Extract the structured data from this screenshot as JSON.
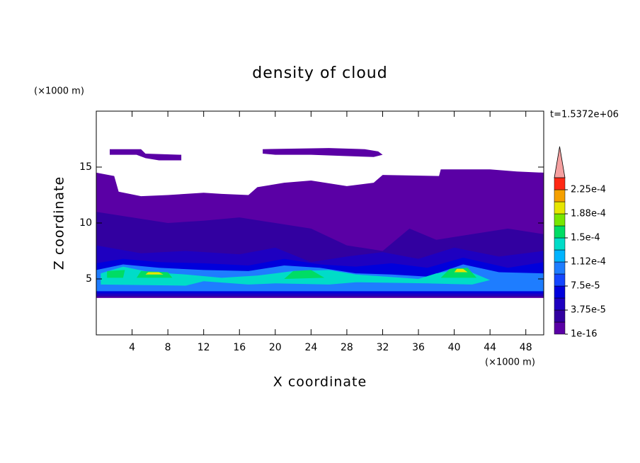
{
  "chart_data": {
    "type": "contour",
    "title": "density of cloud",
    "x_label": "X coordinate",
    "y_label": "Z coordinate",
    "x_unit": "(×1000 m)",
    "y_unit": "(×1000 m)",
    "annotation": "t=1.5372e+06",
    "xlim": [
      0,
      50
    ],
    "ylim": [
      0,
      20
    ],
    "xticks": [
      4,
      8,
      12,
      16,
      20,
      24,
      28,
      32,
      36,
      40,
      44,
      48
    ],
    "yticks": [
      5,
      10,
      15
    ],
    "colorbar": {
      "levels": [
        {
          "value": 1e-16,
          "label": "1e-16"
        },
        {
          "value": 3.75e-05,
          "label": "3.75e-5"
        },
        {
          "value": 7.5e-05,
          "label": "7.5e-5"
        },
        {
          "value": 0.000112,
          "label": "1.12e-4"
        },
        {
          "value": 0.00015,
          "label": "1.5e-4"
        },
        {
          "value": 0.000188,
          "label": "1.88e-4"
        },
        {
          "value": 0.000225,
          "label": "2.25e-4"
        }
      ],
      "colors": [
        "#5a00a5",
        "#3200a0",
        "#1e00c0",
        "#0000dc",
        "#1446ff",
        "#1e7dff",
        "#00b4ff",
        "#00dcc8",
        "#00dc64",
        "#78e600",
        "#e6e600",
        "#f5a000",
        "#ff2814"
      ],
      "over_color": "#f5a0a0"
    },
    "regions": [
      {
        "level": 0,
        "x": [
          0,
          50,
          50,
          47,
          44,
          38.5,
          38.3,
          32,
          31,
          28,
          24,
          21,
          18,
          17,
          14,
          12,
          8,
          5,
          2.5,
          2,
          0
        ],
        "z": [
          3.3,
          3.3,
          14.5,
          14.6,
          14.8,
          14.8,
          14.2,
          14.3,
          13.6,
          13.3,
          13.8,
          13.6,
          13.2,
          12.5,
          12.6,
          12.7,
          12.5,
          12.4,
          12.8,
          14.2,
          14.5
        ]
      },
      {
        "level": 0,
        "x": [
          1.5,
          5,
          5.5,
          9.5,
          9.5,
          7,
          5.5,
          4.5,
          1.5
        ],
        "z": [
          16.6,
          16.6,
          16.2,
          16.1,
          15.6,
          15.6,
          15.8,
          16.1,
          16.1
        ]
      },
      {
        "level": 0,
        "x": [
          18.6,
          26,
          30,
          31.5,
          32,
          31,
          27.5,
          24,
          20,
          18.6
        ],
        "z": [
          16.6,
          16.7,
          16.6,
          16.4,
          16.1,
          15.9,
          16,
          16.1,
          16.1,
          16.2
        ]
      },
      {
        "level": 1,
        "x": [
          0,
          50,
          50,
          46,
          42,
          38,
          35,
          32,
          28,
          24,
          20,
          16,
          12,
          8,
          4,
          0
        ],
        "z": [
          3.4,
          3.4,
          9,
          9.5,
          9,
          8.5,
          9.5,
          7.5,
          8,
          9.5,
          10,
          10.5,
          10.2,
          10,
          10.5,
          11
        ]
      },
      {
        "level": 2,
        "x": [
          0,
          50,
          50,
          45,
          40,
          36,
          32,
          28,
          24,
          20,
          16,
          10,
          5,
          0
        ],
        "z": [
          3.5,
          3.5,
          7.5,
          7,
          7.8,
          6.8,
          7.4,
          7,
          6.5,
          7.8,
          7.2,
          7.5,
          7.3,
          8
        ]
      },
      {
        "level": 3,
        "x": [
          0,
          50,
          50,
          46,
          41,
          37,
          33,
          29,
          25,
          21,
          17,
          12,
          7,
          3,
          0
        ],
        "z": [
          3.7,
          3.7,
          6.5,
          6,
          6.9,
          6,
          6.4,
          6.1,
          6.3,
          6.8,
          6.2,
          6.4,
          6.5,
          6.8,
          6.4
        ]
      },
      {
        "level": 5,
        "x": [
          0,
          50,
          50,
          45,
          41,
          37,
          33,
          29,
          25,
          21,
          17,
          12,
          7,
          3,
          0
        ],
        "z": [
          3.9,
          3.9,
          5.5,
          5.6,
          6.3,
          5.2,
          5.4,
          5.5,
          6,
          6.2,
          5.7,
          5.8,
          6,
          6.3,
          5.8
        ]
      },
      {
        "level": 7,
        "x": [
          0.5,
          10,
          12,
          17,
          20,
          26,
          29,
          37,
          42,
          44,
          41,
          38,
          36,
          29,
          26,
          22,
          18,
          14,
          10,
          6,
          3,
          0.5
        ],
        "z": [
          4.5,
          4.4,
          4.8,
          4.5,
          4.6,
          4.5,
          4.7,
          4.6,
          4.5,
          4.9,
          5.9,
          5.5,
          5,
          5.4,
          5.8,
          5.7,
          5.3,
          5.1,
          5.4,
          5.6,
          6.1,
          5.5
        ]
      },
      {
        "level": 8,
        "x": [
          1.2,
          3,
          3.2,
          1.2
        ],
        "z": [
          5.1,
          5.1,
          5.8,
          5.7
        ]
      },
      {
        "level": 8,
        "x": [
          4.5,
          8.5,
          8,
          5
        ],
        "z": [
          5.1,
          5.1,
          5.6,
          5.7
        ]
      },
      {
        "level": 8,
        "x": [
          21,
          25.5,
          24,
          22
        ],
        "z": [
          5,
          5.1,
          5.8,
          5.7
        ]
      },
      {
        "level": 8,
        "x": [
          38.5,
          42.5,
          41.5,
          39.5
        ],
        "z": [
          5.1,
          5.1,
          6,
          5.9
        ]
      },
      {
        "level": 10,
        "x": [
          5.5,
          7.5,
          7,
          5.8
        ],
        "z": [
          5.4,
          5.4,
          5.6,
          5.6
        ]
      },
      {
        "level": 10,
        "x": [
          40,
          41.5,
          41,
          40.3
        ],
        "z": [
          5.6,
          5.6,
          5.9,
          5.9
        ]
      }
    ]
  }
}
